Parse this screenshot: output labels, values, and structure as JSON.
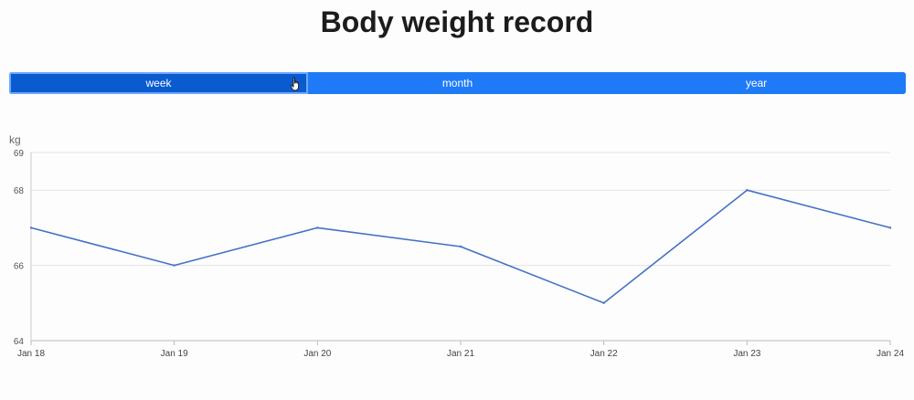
{
  "title": "Body weight record",
  "tabs": [
    {
      "label": "week",
      "active": true
    },
    {
      "label": "month",
      "active": false
    },
    {
      "label": "year",
      "active": false
    }
  ],
  "colors": {
    "accent": "#1f7af7",
    "active_tab": "#0b5bd0",
    "line": "#4472c4",
    "grid": "#e3e3e3"
  },
  "chart_data": {
    "type": "line",
    "ylabel": "kg",
    "xlabel": "",
    "categories": [
      "Jan 18",
      "Jan 19",
      "Jan 20",
      "Jan 21",
      "Jan 22",
      "Jan 23",
      "Jan 24"
    ],
    "series": [
      {
        "values": [
          67,
          66,
          67,
          66.5,
          65,
          68,
          67
        ]
      }
    ],
    "ylim": [
      64,
      69
    ],
    "yticks": [
      64,
      66,
      68,
      69
    ],
    "grid": true
  }
}
